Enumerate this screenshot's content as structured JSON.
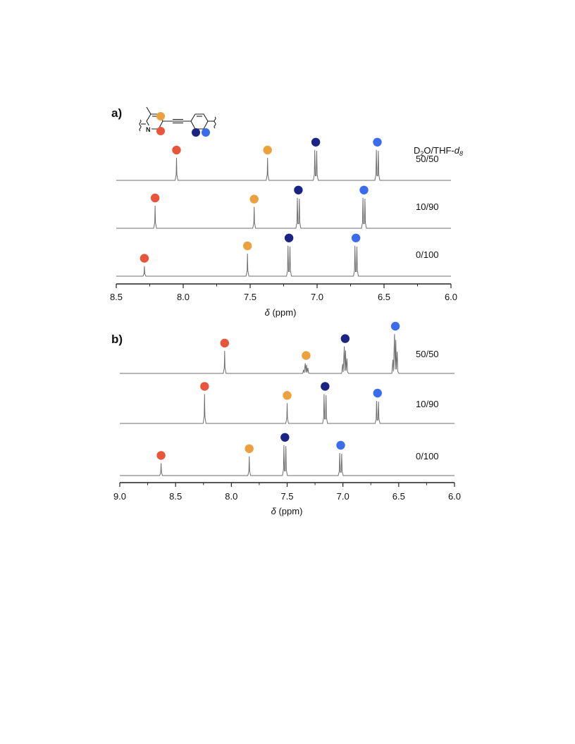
{
  "colors": {
    "red": "#e8553a",
    "orange": "#eda03e",
    "navy": "#1a2485",
    "blue": "#3a6cec",
    "trace": "#6e6e6e",
    "axis": "#222222"
  },
  "structure": {
    "heteroatom": "N",
    "icon": "pyridyl-ethynyl-phenylene-repeat-unit-with-colored-proton-markers"
  },
  "solvent_header": {
    "main": "D",
    "sub1": "2",
    "mid": "O/THF-",
    "italic": "d",
    "sub2": "8"
  },
  "chart_data": [
    {
      "panel": "a)",
      "type": "line",
      "xlabel_symbol": "δ",
      "xlabel_unit": "(ppm)",
      "xlim": [
        8.5,
        6.0
      ],
      "x_reversed": true,
      "ticks": [
        "8.5",
        "8.0",
        "7.5",
        "7.0",
        "6.5",
        "6.0"
      ],
      "tick_values": [
        8.5,
        8.0,
        7.5,
        7.0,
        6.5,
        6.0
      ],
      "series": [
        {
          "name": "50/50",
          "peaks": [
            {
              "ppm": 8.05,
              "proton": "red",
              "shape": "singlet",
              "h": 1.0
            },
            {
              "ppm": 7.37,
              "proton": "orange",
              "shape": "singlet",
              "h": 1.0
            },
            {
              "ppm": 7.01,
              "proton": "navy",
              "shape": "doublet",
              "h": 1.35
            },
            {
              "ppm": 6.55,
              "proton": "blue",
              "shape": "doublet",
              "h": 1.35
            }
          ]
        },
        {
          "name": "10/90",
          "peaks": [
            {
              "ppm": 8.21,
              "proton": "red",
              "shape": "singlet",
              "h": 1.0
            },
            {
              "ppm": 7.47,
              "proton": "orange",
              "shape": "singlet",
              "h": 0.95
            },
            {
              "ppm": 7.14,
              "proton": "navy",
              "shape": "doublet",
              "h": 1.35
            },
            {
              "ppm": 6.65,
              "proton": "blue",
              "shape": "doublet",
              "h": 1.35
            }
          ]
        },
        {
          "name": "0/100",
          "peaks": [
            {
              "ppm": 8.29,
              "proton": "red",
              "shape": "singlet",
              "h": 0.45
            },
            {
              "ppm": 7.52,
              "proton": "orange",
              "shape": "singlet",
              "h": 1.0
            },
            {
              "ppm": 7.21,
              "proton": "navy",
              "shape": "doublet",
              "h": 1.35
            },
            {
              "ppm": 6.71,
              "proton": "blue",
              "shape": "doublet",
              "h": 1.35
            }
          ]
        }
      ]
    },
    {
      "panel": "b)",
      "type": "line",
      "xlabel_symbol": "δ",
      "xlabel_unit": "(ppm)",
      "xlim": [
        9.0,
        6.0
      ],
      "x_reversed": true,
      "ticks": [
        "9.0",
        "8.5",
        "8.0",
        "7.5",
        "7.0",
        "6.5",
        "6.0"
      ],
      "tick_values": [
        9.0,
        8.5,
        8.0,
        7.5,
        7.0,
        6.5,
        6.0
      ],
      "series": [
        {
          "name": "50/50",
          "peaks": [
            {
              "ppm": 8.06,
              "proton": "red",
              "shape": "singlet",
              "h": 1.0
            },
            {
              "ppm": 7.33,
              "proton": "orange",
              "shape": "multiplet",
              "h": 0.45
            },
            {
              "ppm": 6.98,
              "proton": "navy",
              "shape": "multiplet",
              "h": 1.2
            },
            {
              "ppm": 6.53,
              "proton": "blue",
              "shape": "multiplet",
              "h": 1.75
            }
          ]
        },
        {
          "name": "10/90",
          "peaks": [
            {
              "ppm": 8.24,
              "proton": "red",
              "shape": "singlet",
              "h": 1.3
            },
            {
              "ppm": 7.5,
              "proton": "orange",
              "shape": "singlet",
              "h": 0.9
            },
            {
              "ppm": 7.16,
              "proton": "navy",
              "shape": "doublet",
              "h": 1.3
            },
            {
              "ppm": 6.69,
              "proton": "blue",
              "shape": "doublet",
              "h": 1.0
            }
          ]
        },
        {
          "name": "0/100",
          "peaks": [
            {
              "ppm": 8.63,
              "proton": "red",
              "shape": "singlet",
              "h": 0.55
            },
            {
              "ppm": 7.84,
              "proton": "orange",
              "shape": "singlet",
              "h": 0.85
            },
            {
              "ppm": 7.52,
              "proton": "navy",
              "shape": "doublet",
              "h": 1.35
            },
            {
              "ppm": 7.02,
              "proton": "blue",
              "shape": "doublet",
              "h": 1.0
            }
          ]
        }
      ]
    }
  ]
}
